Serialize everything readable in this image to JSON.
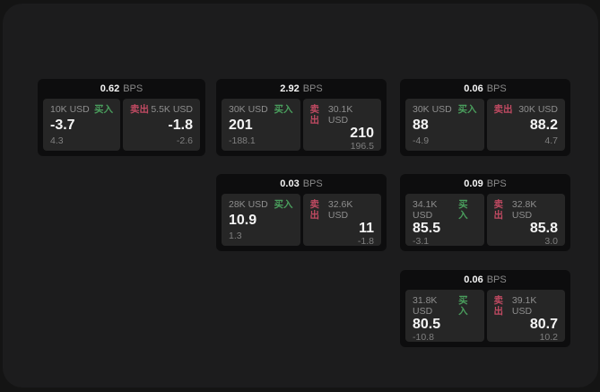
{
  "colors": {
    "buy_green": "#4a9e5d",
    "sell_red": "#c04a62",
    "surface": "#1c1c1d",
    "card_bg": "#0d0d0e",
    "panel_bg": "#262626"
  },
  "cards": [
    {
      "bps": "0.62",
      "bps_unit": "BPS",
      "buy": {
        "size": "10K USD",
        "side": "买入",
        "price": "-3.7",
        "delta": "4.3"
      },
      "sell": {
        "side": "卖出",
        "size": "5.5K USD",
        "price": "-1.8",
        "delta": "-2.6"
      }
    },
    {
      "bps": "2.92",
      "bps_unit": "BPS",
      "buy": {
        "size": "30K USD",
        "side": "买入",
        "price": "201",
        "delta": "-188.1"
      },
      "sell": {
        "side": "卖出",
        "size": "30.1K USD",
        "price": "210",
        "delta": "196.5"
      }
    },
    {
      "bps": "0.06",
      "bps_unit": "BPS",
      "buy": {
        "size": "30K USD",
        "side": "买入",
        "price": "88",
        "delta": "-4.9"
      },
      "sell": {
        "side": "卖出",
        "size": "30K USD",
        "price": "88.2",
        "delta": "4.7"
      }
    },
    {
      "bps": "0.03",
      "bps_unit": "BPS",
      "buy": {
        "size": "28K USD",
        "side": "买入",
        "price": "10.9",
        "delta": "1.3"
      },
      "sell": {
        "side": "卖出",
        "size": "32.6K USD",
        "price": "11",
        "delta": "-1.8"
      }
    },
    {
      "bps": "0.09",
      "bps_unit": "BPS",
      "buy": {
        "size": "34.1K USD",
        "side": "买入",
        "price": "85.5",
        "delta": "-3.1"
      },
      "sell": {
        "side": "卖出",
        "size": "32.8K USD",
        "price": "85.8",
        "delta": "3.0"
      }
    },
    {
      "bps": "0.06",
      "bps_unit": "BPS",
      "buy": {
        "size": "31.8K USD",
        "side": "买入",
        "price": "80.5",
        "delta": "-10.8"
      },
      "sell": {
        "side": "卖出",
        "size": "39.1K USD",
        "price": "80.7",
        "delta": "10.2"
      }
    }
  ]
}
